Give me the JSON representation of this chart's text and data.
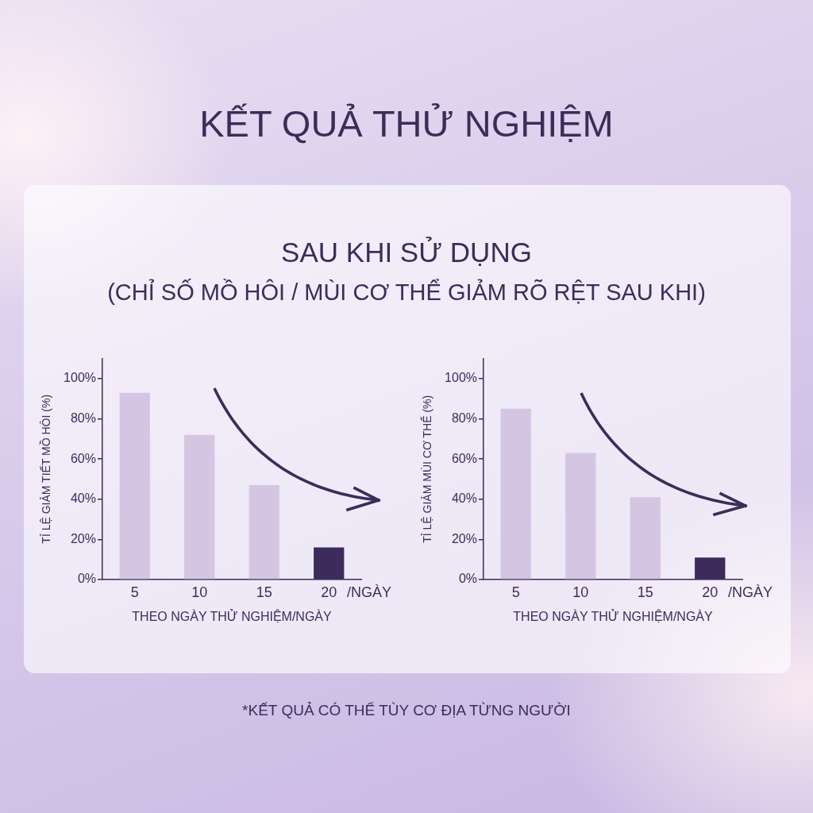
{
  "chart_data": [
    {
      "type": "bar",
      "title": "KẾT QUẢ THỬ NGHIỆM",
      "subtitle": "SAU KHI SỬ DỤNG\n(CHỈ SỐ MỒ HÔI / MÙI CƠ THỂ GIẢM RÕ RỆT SAU KHI)",
      "categories": [
        "5",
        "10",
        "15",
        "20"
      ],
      "values": [
        93,
        72,
        47,
        16
      ],
      "colors": [
        "#d4c6e3",
        "#d4c6e3",
        "#d4c6e3",
        "#3c2b5b"
      ],
      "xlabel": "THEO NGÀY THỬ NGHIỆM/NGÀY",
      "ylabel": "TỈ LỆ GIẢM TIẾT MỒ HÔI (%)",
      "ylim": [
        0,
        110
      ],
      "yticks": [
        {
          "value": 0,
          "label": "0%"
        },
        {
          "value": 20,
          "label": "20%"
        },
        {
          "value": 40,
          "label": "40%"
        },
        {
          "value": 60,
          "label": "60%"
        },
        {
          "value": 80,
          "label": "80%"
        },
        {
          "value": 100,
          "label": "100%"
        }
      ],
      "annotations": [
        "/NGÀY",
        "*KẾT QUẢ CÓ THỂ TÙY CƠ ĐỊA TỪNG NGƯỜI"
      ]
    },
    {
      "type": "bar",
      "categories": [
        "5",
        "10",
        "15",
        "20"
      ],
      "values": [
        85,
        63,
        41,
        11
      ],
      "colors": [
        "#d4c6e3",
        "#d4c6e3",
        "#d4c6e3",
        "#3c2b5b"
      ],
      "xlabel": "THEO NGÀY THỬ NGHIỆM/NGÀY",
      "ylabel": "TỈ LỆ GIẢM MÙI CƠ THỂ (%)",
      "ylim": [
        0,
        110
      ],
      "yticks": [
        {
          "value": 0,
          "label": "0%"
        },
        {
          "value": 20,
          "label": "20%"
        },
        {
          "value": 40,
          "label": "40%"
        },
        {
          "value": 60,
          "label": "60%"
        },
        {
          "value": 80,
          "label": "80%"
        },
        {
          "value": 100,
          "label": "100%"
        }
      ],
      "annotations": [
        "/NGÀY"
      ]
    }
  ]
}
